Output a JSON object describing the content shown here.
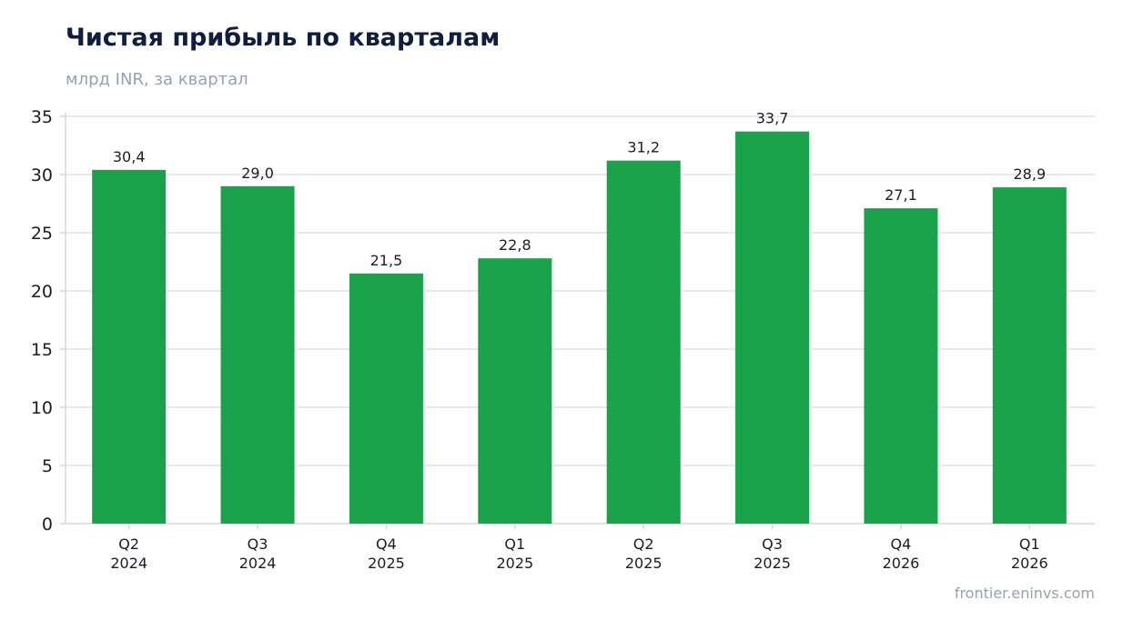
{
  "title": "Чистая прибыль по кварталам",
  "subtitle": "млрд INR, за квартал",
  "source": "frontier.eninvs.com",
  "chart_data": {
    "type": "bar",
    "title": "Чистая прибыль по кварталам",
    "subtitle": "млрд INR, за квартал",
    "xlabel": "",
    "ylabel": "",
    "categories": [
      [
        "Q2",
        "2024"
      ],
      [
        "Q3",
        "2024"
      ],
      [
        "Q4",
        "2025"
      ],
      [
        "Q1",
        "2025"
      ],
      [
        "Q2",
        "2025"
      ],
      [
        "Q3",
        "2025"
      ],
      [
        "Q4",
        "2026"
      ],
      [
        "Q1",
        "2026"
      ]
    ],
    "values": [
      30.4,
      29.0,
      21.5,
      22.8,
      31.2,
      33.7,
      27.1,
      28.9
    ],
    "value_labels": [
      "30,4",
      "29,0",
      "21,5",
      "22,8",
      "31,2",
      "33,7",
      "27,1",
      "28,9"
    ],
    "ylim": [
      0,
      35
    ],
    "yticks": [
      0,
      5,
      10,
      15,
      20,
      25,
      30,
      35
    ],
    "grid": true,
    "legend": "none",
    "bar_color": "#18a34a",
    "grid_color": "#e6e9ee",
    "axis_color": "#d3d7dd"
  }
}
